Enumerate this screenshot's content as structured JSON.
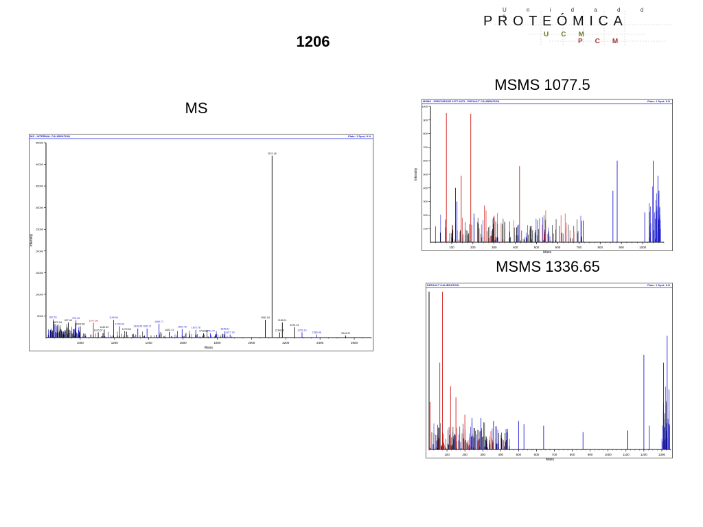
{
  "slide_title": "1206",
  "panels": {
    "ms_title": "MS",
    "msms1_title": "MSMS 1077.5",
    "msms2_title": "MSMS 1336.65"
  },
  "logo": {
    "small": "U n i d a d   d e",
    "main": "PROTEÓMICA",
    "ucm": "UCM",
    "pcm": "PCM",
    "colors": {
      "ucm": "#6d7c2a",
      "pcm": "#a23a3a"
    }
  },
  "colors": {
    "peak_black": "#000000",
    "peak_blue": "#1a1ad0",
    "peak_red": "#d01a1a"
  },
  "chart_data": [
    {
      "type": "bar",
      "id": "ms",
      "header_left": "MS - INTERNAL CALIBRATION",
      "header_right": "Plate: 1 Spot: 8 N",
      "xlabel": "Mass",
      "ylabel": "Intensity",
      "xlim": [
        800,
        2700
      ],
      "ylim": [
        0,
        45000
      ],
      "xticks": [
        1000,
        1200,
        1400,
        1600,
        1800,
        2000,
        2200,
        2400,
        2600
      ],
      "yticks": [
        5000,
        10000,
        15000,
        20000,
        25000,
        30000,
        35000,
        40000,
        45000
      ],
      "peaks": [
        {
          "x": 842,
          "y": 4200,
          "c": "blue",
          "label": "842.51"
        },
        {
          "x": 870,
          "y": 3000,
          "c": "black",
          "label": "870.54"
        },
        {
          "x": 930,
          "y": 3500,
          "c": "black",
          "label": "927.49"
        },
        {
          "x": 975,
          "y": 4000,
          "c": "blue",
          "label": "975.45"
        },
        {
          "x": 1000,
          "y": 2600,
          "c": "black",
          "label": "1002.56"
        },
        {
          "x": 1077,
          "y": 3400,
          "c": "red",
          "label": "1077.56"
        },
        {
          "x": 1105,
          "y": 1200,
          "c": "black",
          "label": "1105.57"
        },
        {
          "x": 1140,
          "y": 1900,
          "c": "black",
          "label": "1140.53"
        },
        {
          "x": 1195,
          "y": 4100,
          "c": "blue",
          "label": "1195.55"
        },
        {
          "x": 1230,
          "y": 2600,
          "c": "blue",
          "label": "1230.59"
        },
        {
          "x": 1270,
          "y": 1400,
          "c": "black",
          "label": "1270.59"
        },
        {
          "x": 1336,
          "y": 2100,
          "c": "blue",
          "label": "1336.65"
        },
        {
          "x": 1390,
          "y": 2100,
          "c": "blue",
          "label": "1390.71"
        },
        {
          "x": 1460,
          "y": 3200,
          "c": "blue",
          "label": "1460.71"
        },
        {
          "x": 1520,
          "y": 1300,
          "c": "black",
          "label": "1522.71"
        },
        {
          "x": 1595,
          "y": 2000,
          "c": "blue",
          "label": "1594.76"
        },
        {
          "x": 1675,
          "y": 1800,
          "c": "blue",
          "label": "1675.78"
        },
        {
          "x": 1720,
          "y": 1000,
          "c": "black",
          "label": "1718.83"
        },
        {
          "x": 1760,
          "y": 1000,
          "c": "blue",
          "label": "1761.77"
        },
        {
          "x": 1845,
          "y": 1500,
          "c": "blue",
          "label": "1845.81"
        },
        {
          "x": 1875,
          "y": 700,
          "c": "blue",
          "label": "1877.90"
        },
        {
          "x": 2081,
          "y": 4100,
          "c": "black",
          "label": "2081.04"
        },
        {
          "x": 2120,
          "y": 42000,
          "c": "black",
          "label": "2121.16"
        },
        {
          "x": 2164,
          "y": 1200,
          "c": "black",
          "label": "2164.10"
        },
        {
          "x": 2180,
          "y": 3500,
          "c": "black",
          "label": "2185.11"
        },
        {
          "x": 2250,
          "y": 2400,
          "c": "black",
          "label": "2273.13"
        },
        {
          "x": 2295,
          "y": 1200,
          "c": "blue",
          "label": "2295.10"
        },
        {
          "x": 2380,
          "y": 700,
          "c": "blue",
          "label": "2380.08"
        },
        {
          "x": 2550,
          "y": 500,
          "c": "black",
          "label": "2549.22"
        }
      ]
    },
    {
      "type": "bar",
      "id": "msms1",
      "header_left": "MSMS - PRECURSOR 1077.4973 - DEFAULT CALIBRATION",
      "header_right": "Plate: 1 Spot: 8 N",
      "xlabel": "Mass",
      "ylabel": "Intensity",
      "xlim": [
        0,
        1100
      ],
      "ylim": [
        0,
        1000
      ],
      "xticks": [
        100,
        200,
        300,
        400,
        500,
        600,
        700,
        800,
        900,
        1000
      ],
      "yticks": [
        100,
        200,
        300,
        400,
        500,
        600,
        700,
        800,
        900,
        1000
      ],
      "peaks": [
        {
          "x": 75,
          "y": 950,
          "c": "red",
          "label": ""
        },
        {
          "x": 145,
          "y": 490,
          "c": "red",
          "label": ""
        },
        {
          "x": 190,
          "y": 945,
          "c": "red",
          "label": ""
        },
        {
          "x": 118,
          "y": 400,
          "c": "blue",
          "label": ""
        },
        {
          "x": 125,
          "y": 300,
          "c": "blue",
          "label": ""
        },
        {
          "x": 255,
          "y": 270,
          "c": "red",
          "label": ""
        },
        {
          "x": 205,
          "y": 210,
          "c": "blue",
          "label": ""
        },
        {
          "x": 300,
          "y": 180,
          "c": "black",
          "label": ""
        },
        {
          "x": 300,
          "y": 195,
          "c": "red",
          "label": ""
        },
        {
          "x": 420,
          "y": 560,
          "c": "red",
          "label": ""
        },
        {
          "x": 350,
          "y": 150,
          "c": "black",
          "label": ""
        },
        {
          "x": 470,
          "y": 120,
          "c": "black",
          "label": ""
        },
        {
          "x": 620,
          "y": 70,
          "c": "black",
          "label": ""
        },
        {
          "x": 720,
          "y": 160,
          "c": "blue",
          "label": ""
        },
        {
          "x": 860,
          "y": 380,
          "c": "blue",
          "label": ""
        },
        {
          "x": 880,
          "y": 600,
          "c": "blue",
          "label": ""
        },
        {
          "x": 1010,
          "y": 220,
          "c": "blue",
          "label": ""
        },
        {
          "x": 1050,
          "y": 600,
          "c": "blue",
          "label": ""
        },
        {
          "x": 1072,
          "y": 490,
          "c": "blue",
          "label": ""
        },
        {
          "x": 1077,
          "y": 380,
          "c": "blue",
          "label": ""
        }
      ]
    },
    {
      "type": "bar",
      "id": "msms2",
      "header_left": "DEFAULT CALIBRATION",
      "header_right": "Plate: 1 Spot: 8 N",
      "xlabel": "Mass",
      "ylabel": "",
      "xlim": [
        0,
        1350
      ],
      "ylim": [
        0,
        1000
      ],
      "xticks": [
        100,
        200,
        300,
        400,
        500,
        600,
        700,
        800,
        900,
        1000,
        1100,
        1200,
        1300
      ],
      "yticks": [],
      "peaks": [
        {
          "x": 5,
          "y": 300,
          "c": "red",
          "label": ""
        },
        {
          "x": 60,
          "y": 550,
          "c": "red",
          "label": ""
        },
        {
          "x": 75,
          "y": 1000,
          "c": "red",
          "label": ""
        },
        {
          "x": 120,
          "y": 400,
          "c": "red",
          "label": ""
        },
        {
          "x": 150,
          "y": 330,
          "c": "red",
          "label": ""
        },
        {
          "x": 200,
          "y": 220,
          "c": "red",
          "label": ""
        },
        {
          "x": 240,
          "y": 200,
          "c": "blue",
          "label": ""
        },
        {
          "x": 290,
          "y": 200,
          "c": "blue",
          "label": ""
        },
        {
          "x": 360,
          "y": 180,
          "c": "blue",
          "label": ""
        },
        {
          "x": 430,
          "y": 130,
          "c": "blue",
          "label": ""
        },
        {
          "x": 500,
          "y": 180,
          "c": "blue",
          "label": ""
        },
        {
          "x": 530,
          "y": 160,
          "c": "blue",
          "label": ""
        },
        {
          "x": 640,
          "y": 150,
          "c": "blue",
          "label": ""
        },
        {
          "x": 860,
          "y": 110,
          "c": "blue",
          "label": ""
        },
        {
          "x": 1110,
          "y": 120,
          "c": "black",
          "label": ""
        },
        {
          "x": 1200,
          "y": 600,
          "c": "blue",
          "label": ""
        },
        {
          "x": 1230,
          "y": 150,
          "c": "blue",
          "label": ""
        },
        {
          "x": 1310,
          "y": 550,
          "c": "blue",
          "label": ""
        },
        {
          "x": 1330,
          "y": 720,
          "c": "blue",
          "label": ""
        },
        {
          "x": 1340,
          "y": 380,
          "c": "blue",
          "label": ""
        }
      ]
    }
  ]
}
